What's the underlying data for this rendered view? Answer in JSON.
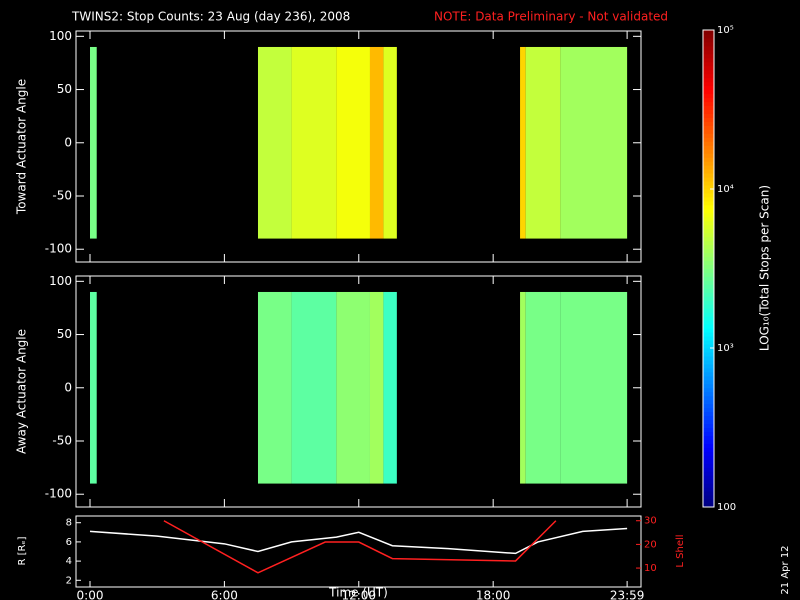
{
  "chart_data": [
    {
      "type": "heatmap",
      "title": "TWINS2: Stop Counts: 23 Aug (day 236), 2008",
      "subtitle": "NOTE: Data Preliminary - Not validated",
      "ylabel": "Toward Actuator Angle",
      "x_edges": [
        0,
        0.3,
        7.5,
        9,
        11,
        12.5,
        13.1,
        13.7,
        19.2,
        19.45,
        21,
        23.98
      ],
      "values": [
        3000,
        null,
        5000,
        6000,
        7000,
        12000,
        6000,
        null,
        10000,
        5000,
        4000
      ],
      "angle_range": [
        -90,
        90
      ],
      "xlim": [
        -0.625,
        24.6
      ],
      "ylim": [
        -112,
        105
      ],
      "yticks": [
        100,
        50,
        0,
        -50,
        -100
      ]
    },
    {
      "type": "heatmap",
      "ylabel": "Away Actuator Angle",
      "x_edges": [
        0,
        0.3,
        7.5,
        9,
        11,
        12.5,
        13.1,
        13.7,
        19.2,
        19.45,
        21,
        23.98
      ],
      "values": [
        2500,
        null,
        3000,
        2500,
        3500,
        4000,
        2000,
        null,
        4000,
        3000,
        3000
      ],
      "angle_range": [
        -90,
        90
      ],
      "xlim": [
        -0.625,
        24.6
      ],
      "ylim": [
        -112,
        105
      ],
      "yticks": [
        100,
        50,
        0,
        -50,
        -100
      ]
    },
    {
      "type": "colorbar",
      "label": "LOG₁₀(Total Stops per Scan)",
      "log_scale": true,
      "ylim": [
        100,
        100000
      ],
      "yticks": [
        {
          "value": 100000,
          "label": "10⁵"
        },
        {
          "value": 10000,
          "label": "10⁴"
        },
        {
          "value": 1000,
          "label": "10³"
        },
        100
      ]
    },
    {
      "type": "line",
      "xlabel": "Time (UT)",
      "ylabel": "R [Rₑ]",
      "y2label": "L Shell",
      "xlim": [
        -0.625,
        24.6
      ],
      "xticks": [
        {
          "value": 0,
          "label": "0:00"
        },
        {
          "value": 6,
          "label": "6:00"
        },
        {
          "value": 12,
          "label": "12:00"
        },
        {
          "value": 18,
          "label": "18:00"
        },
        {
          "value": 23.98,
          "label": "23:59"
        }
      ],
      "ylim": [
        1.3,
        8.7
      ],
      "yticks": [
        2,
        4,
        6,
        8
      ],
      "y2lim": [
        2,
        32
      ],
      "y2ticks": [
        10,
        20,
        30
      ],
      "series": [
        {
          "name": "R",
          "color": "#ffffff",
          "x": [
            0,
            3,
            6,
            7.5,
            9,
            11,
            12,
            13.5,
            16,
            19,
            20,
            22,
            23.98
          ],
          "values": [
            7.1,
            6.6,
            5.8,
            5.0,
            6.0,
            6.5,
            7.0,
            5.6,
            5.3,
            4.8,
            6.0,
            7.1,
            7.4
          ]
        },
        {
          "name": "L Shell",
          "color": "#ff2020",
          "axis": "y2",
          "x": [
            3.3,
            7.5,
            10.5,
            12,
            13.5,
            19,
            20.8
          ],
          "values": [
            30,
            8,
            21,
            21,
            14,
            13,
            30
          ]
        }
      ]
    },
    {
      "type": "text",
      "date": "21 Apr 12"
    }
  ]
}
